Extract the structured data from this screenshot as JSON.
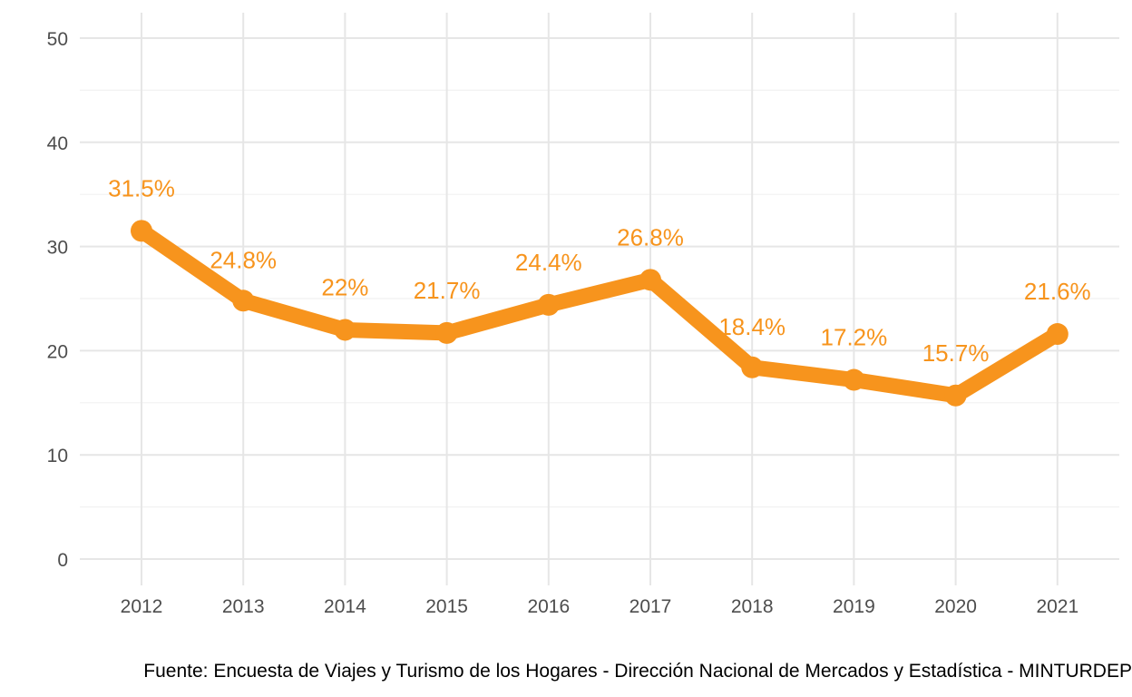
{
  "chart_data": {
    "type": "line",
    "categories": [
      "2012",
      "2013",
      "2014",
      "2015",
      "2016",
      "2017",
      "2018",
      "2019",
      "2020",
      "2021"
    ],
    "values": [
      31.5,
      24.8,
      22,
      21.7,
      24.4,
      26.8,
      18.4,
      17.2,
      15.7,
      21.6
    ],
    "data_labels": [
      "31.5%",
      "24.8%",
      "22%",
      "21.7%",
      "24.4%",
      "26.8%",
      "18.4%",
      "17.2%",
      "15.7%",
      "21.6%"
    ],
    "y_ticks": [
      "0",
      "10",
      "20",
      "30",
      "40",
      "50"
    ],
    "ylim": [
      0,
      50
    ],
    "grid": true,
    "legend": "none",
    "color": "#f7941d",
    "title": "",
    "xlabel": "",
    "ylabel": ""
  },
  "caption": "Fuente: Encuesta de Viajes y Turismo de los Hogares - Dirección Nacional de Mercados y Estadística - MINTURDEP"
}
